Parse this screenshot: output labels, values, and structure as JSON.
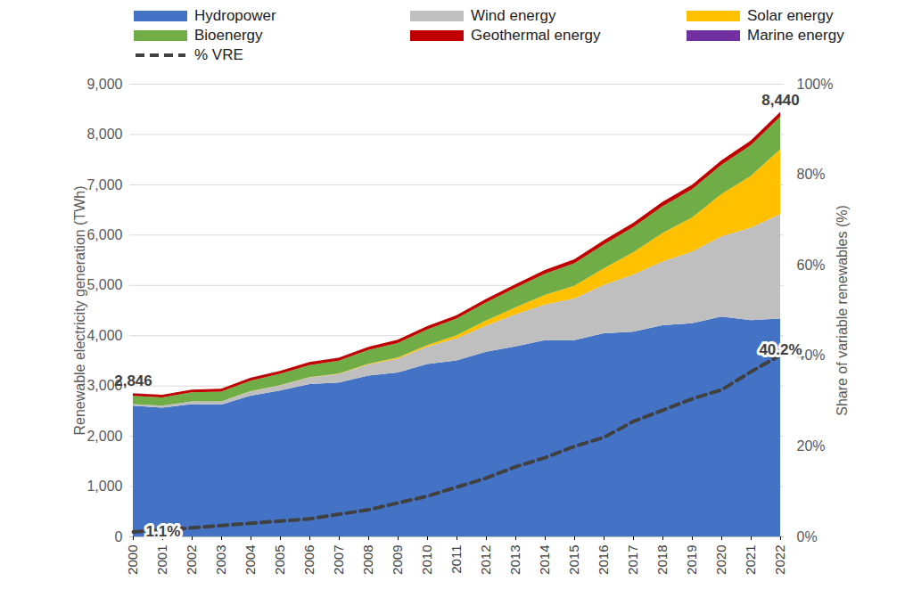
{
  "chart_data": {
    "type": "area",
    "stacked": true,
    "legend": "top",
    "grid": true,
    "ylabel": "Renewable electricity generation (TWh)",
    "y2label": "Share of variable renewables (%)",
    "categories": [
      "2000",
      "2001",
      "2002",
      "2003",
      "2004",
      "2005",
      "2006",
      "2007",
      "2008",
      "2009",
      "2010",
      "2011",
      "2012",
      "2013",
      "2014",
      "2015",
      "2016",
      "2017",
      "2018",
      "2019",
      "2020",
      "2021",
      "2022"
    ],
    "ylim": [
      0,
      9000
    ],
    "yticks": [
      0,
      1000,
      2000,
      3000,
      4000,
      5000,
      6000,
      7000,
      8000,
      9000
    ],
    "y2lim": [
      0,
      100
    ],
    "y2ticks": [
      {
        "value": 0,
        "label": "0%"
      },
      {
        "value": 20,
        "label": "20%"
      },
      {
        "value": 40,
        "label": "40%"
      },
      {
        "value": 60,
        "label": "60%"
      },
      {
        "value": 80,
        "label": "80%"
      },
      {
        "value": 100,
        "label": "100%"
      }
    ],
    "series": [
      {
        "name": "Hydropower",
        "color": "#4472c4",
        "values": [
          2600,
          2560,
          2630,
          2620,
          2800,
          2900,
          3030,
          3060,
          3200,
          3260,
          3430,
          3500,
          3670,
          3780,
          3900,
          3900,
          4040,
          4070,
          4200,
          4240,
          4370,
          4300,
          4330
        ]
      },
      {
        "name": "Wind energy",
        "color": "#bfbfbf",
        "values": [
          31,
          38,
          52,
          63,
          85,
          104,
          132,
          170,
          220,
          276,
          342,
          437,
          521,
          636,
          712,
          831,
          959,
          1134,
          1264,
          1420,
          1596,
          1838,
          2080
        ]
      },
      {
        "name": "Solar energy",
        "color": "#ffc000",
        "values": [
          1,
          2,
          2,
          3,
          3,
          4,
          6,
          8,
          12,
          20,
          32,
          63,
          99,
          137,
          190,
          250,
          330,
          445,
          570,
          680,
          840,
          1030,
          1290
        ]
      },
      {
        "name": "Bioenergy",
        "color": "#70ad47",
        "values": [
          161,
          165,
          180,
          195,
          210,
          225,
          240,
          255,
          275,
          290,
          310,
          330,
          360,
          390,
          420,
          450,
          475,
          500,
          530,
          560,
          580,
          610,
          644
        ]
      },
      {
        "name": "Geothermal energy",
        "color": "#c00000",
        "values": [
          52,
          53,
          54,
          56,
          57,
          58,
          60,
          61,
          63,
          65,
          68,
          69,
          70,
          72,
          75,
          78,
          81,
          84,
          87,
          90,
          90,
          92,
          95
        ]
      },
      {
        "name": "Marine energy",
        "color": "#7030a0",
        "values": [
          1,
          1,
          1,
          1,
          1,
          1,
          1,
          1,
          1,
          1,
          1,
          1,
          1,
          1,
          1,
          1,
          1,
          1,
          1,
          1,
          1,
          1,
          1
        ]
      },
      {
        "name": "% VRE",
        "color": "#404040",
        "type": "line",
        "axis": "y2",
        "line_style": "dashed",
        "values": [
          1.1,
          1.5,
          2.0,
          2.5,
          3.0,
          3.5,
          4.0,
          5.0,
          6.0,
          7.5,
          9.0,
          11.0,
          13.0,
          15.5,
          17.5,
          20.0,
          22.0,
          25.5,
          28.0,
          30.5,
          32.5,
          36.5,
          40.2
        ]
      }
    ],
    "annotations": [
      {
        "text": "2,846",
        "x": "2000",
        "y": 2846
      },
      {
        "text": "8,440",
        "x": "2022",
        "y": 8440
      },
      {
        "text": "1.1%",
        "x": "2000",
        "y": 1.1,
        "axis": "y2"
      },
      {
        "text": "40.2%",
        "x": "2022",
        "y": 40.2,
        "axis": "y2"
      }
    ]
  }
}
